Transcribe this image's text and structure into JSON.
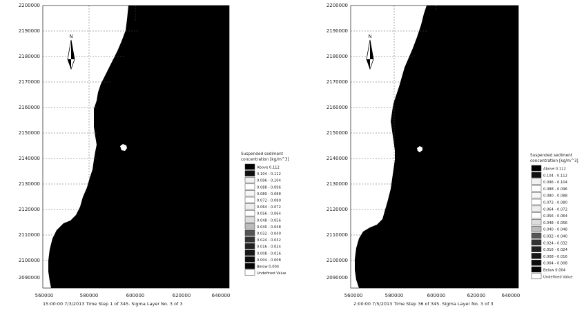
{
  "panels": [
    {
      "id": "left",
      "caption": "15:00:00 7/3/2013  Time Step 1 of 345. Sigma Layer No. 3 of 3",
      "y_ticks": [
        "2200000",
        "2190000",
        "2180000",
        "2170000",
        "2160000",
        "2150000",
        "2140000",
        "2130000",
        "2120000",
        "2110000",
        "2100000",
        "2090000"
      ],
      "x_ticks": [
        "560000",
        "580000",
        "600000",
        "620000",
        "640000"
      ],
      "legend": {
        "title_line1": "Suspended sediment",
        "title_line2": "concentration [kg/m^3]",
        "entries": [
          {
            "label": "Above  0.112",
            "color": "#000000"
          },
          {
            "label": "0.104 - 0.112",
            "color": "#101010"
          },
          {
            "label": "0.096 - 0.104",
            "color": "#f2f2f2"
          },
          {
            "label": "0.088 - 0.096",
            "color": "#ffffff"
          },
          {
            "label": "0.080 - 0.088",
            "color": "#f7f7f7"
          },
          {
            "label": "0.072 - 0.080",
            "color": "#ffffff"
          },
          {
            "label": "0.064 - 0.072",
            "color": "#eeeeee"
          },
          {
            "label": "0.056 - 0.064",
            "color": "#ffffff"
          },
          {
            "label": "0.048 - 0.056",
            "color": "#dddddd"
          },
          {
            "label": "0.040 - 0.048",
            "color": "#bbbbbb"
          },
          {
            "label": "0.032 - 0.040",
            "color": "#555555"
          },
          {
            "label": "0.024 - 0.032",
            "color": "#333333"
          },
          {
            "label": "0.016 - 0.024",
            "color": "#222222"
          },
          {
            "label": "0.008 - 0.016",
            "color": "#181818"
          },
          {
            "label": "0.004 - 0.008",
            "color": "#0d0d0d"
          },
          {
            "label": "Below  0.004",
            "color": "#050505"
          },
          {
            "label": "Undefined Value",
            "color": "#ffffff"
          }
        ]
      }
    },
    {
      "id": "right",
      "caption": "2:00:00 7/5/2013  Time Step 36 of 345. Sigma Layer No. 3 of 3",
      "y_ticks": [
        "2200000",
        "2190000",
        "2180000",
        "2170000",
        "2160000",
        "2150000",
        "2140000",
        "2130000",
        "2120000",
        "2110000",
        "2100000",
        "2090000"
      ],
      "x_ticks": [
        "560000",
        "580000",
        "600000",
        "620000",
        "640000"
      ],
      "legend": {
        "title_line1": "Suspended sediment",
        "title_line2": "concentration [kg/m^3]",
        "entries": [
          {
            "label": "Above  0.112",
            "color": "#000000"
          },
          {
            "label": "0.104 - 0.112",
            "color": "#101010"
          },
          {
            "label": "0.096 - 0.104",
            "color": "#f2f2f2"
          },
          {
            "label": "0.088 - 0.096",
            "color": "#ffffff"
          },
          {
            "label": "0.080 - 0.088",
            "color": "#f7f7f7"
          },
          {
            "label": "0.072 - 0.080",
            "color": "#ffffff"
          },
          {
            "label": "0.064 - 0.072",
            "color": "#eeeeee"
          },
          {
            "label": "0.056 - 0.064",
            "color": "#ffffff"
          },
          {
            "label": "0.048 - 0.056",
            "color": "#dddddd"
          },
          {
            "label": "0.040 - 0.048",
            "color": "#bbbbbb"
          },
          {
            "label": "0.032 - 0.040",
            "color": "#555555"
          },
          {
            "label": "0.024 - 0.032",
            "color": "#333333"
          },
          {
            "label": "0.016 - 0.024",
            "color": "#222222"
          },
          {
            "label": "0.008 - 0.016",
            "color": "#181818"
          },
          {
            "label": "0.004 - 0.008",
            "color": "#0d0d0d"
          },
          {
            "label": "Below  0.004",
            "color": "#050505"
          },
          {
            "label": "Undefined Value",
            "color": "#ffffff"
          }
        ]
      }
    }
  ],
  "north_label": "N",
  "colors": {
    "sea": "#000000",
    "land": "#ffffff",
    "grid": "#444444",
    "frame": "#333333"
  }
}
